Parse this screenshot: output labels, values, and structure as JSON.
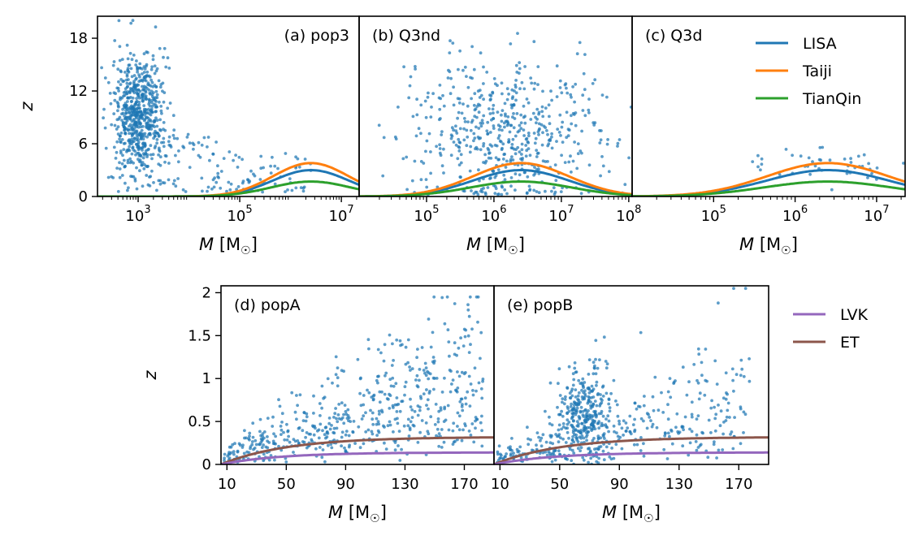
{
  "chart_data": {
    "type": "scatter",
    "colors": {
      "scatter": "#1f77b4",
      "LISA": "#1f77b4",
      "Taiji": "#ff7f0e",
      "TianQin": "#2ca02c",
      "LVK": "#9467bd",
      "ET": "#8c564b"
    },
    "legend_top": {
      "placement": "top-right",
      "entries": [
        "LISA",
        "Taiji",
        "TianQin"
      ]
    },
    "legend_bottom": {
      "placement": "right",
      "entries": [
        "LVK",
        "ET"
      ]
    },
    "panels": [
      {
        "id": "a",
        "title": "(a) pop3",
        "xscale": "log",
        "xlim": [
          2.2,
          7.35
        ],
        "ylim": [
          0,
          20.5
        ],
        "xticks": [
          3,
          5,
          7
        ],
        "xtick_labels": [
          "10",
          "10",
          "10"
        ],
        "xtick_exps": [
          "3",
          "5",
          "7"
        ],
        "yticks": [
          0,
          6,
          12,
          18
        ],
        "ytick_labels": [
          "0",
          "6",
          "12",
          "18"
        ],
        "xlabel_main": "M",
        "xlabel_unit": "[M",
        "xlabel_sun": "☉",
        "xlabel_close": "]",
        "ylabel": "z",
        "scatter_cluster": {
          "cx": 3.0,
          "cy": 9.5,
          "sx": 0.25,
          "sy": 3.5,
          "n": 650
        },
        "scatter_tail": {
          "xrange": [
            3.4,
            6.5
          ],
          "yrange": [
            0.5,
            8
          ],
          "n": 130
        },
        "curves": [
          {
            "name": "LISA",
            "peak_x": 6.4,
            "peak_y": 3.0,
            "width": 1.0
          },
          {
            "name": "Taiji",
            "peak_x": 6.4,
            "peak_y": 3.8,
            "width": 1.0
          },
          {
            "name": "TianQin",
            "peak_x": 6.4,
            "peak_y": 1.7,
            "width": 1.05
          }
        ]
      },
      {
        "id": "b",
        "title": "(b) Q3nd",
        "xscale": "log",
        "xlim": [
          4.0,
          8.05
        ],
        "ylim": [
          0,
          20.5
        ],
        "xticks": [
          5,
          6,
          7,
          8
        ],
        "xtick_labels": [
          "10",
          "10",
          "10",
          "10"
        ],
        "xtick_exps": [
          "5",
          "6",
          "7",
          "8"
        ],
        "yticks": [],
        "xlabel_main": "M",
        "xlabel_unit": "[M",
        "xlabel_sun": "☉",
        "xlabel_close": "]",
        "scatter_cluster": {
          "cx": 6.2,
          "cy": 7.5,
          "sx": 0.75,
          "sy": 4.5,
          "n": 560
        },
        "curves": [
          {
            "name": "LISA",
            "peak_x": 6.4,
            "peak_y": 3.0,
            "width": 0.95
          },
          {
            "name": "Taiji",
            "peak_x": 6.4,
            "peak_y": 3.8,
            "width": 0.95
          },
          {
            "name": "TianQin",
            "peak_x": 6.4,
            "peak_y": 1.7,
            "width": 1.0
          }
        ]
      },
      {
        "id": "c",
        "title": "(c) Q3d",
        "xscale": "log",
        "xlim": [
          4.0,
          7.35
        ],
        "ylim": [
          0,
          20.5
        ],
        "xticks": [
          5,
          6,
          7
        ],
        "xtick_labels": [
          "10",
          "10",
          "10"
        ],
        "xtick_exps": [
          "5",
          "6",
          "7"
        ],
        "yticks": [],
        "xlabel_main": "M",
        "xlabel_unit": "[M",
        "xlabel_sun": "☉",
        "xlabel_close": "]",
        "scatter_cluster": {
          "cx": 6.3,
          "cy": 4.0,
          "sx": 0.5,
          "sy": 1.3,
          "n": 45
        },
        "curves": [
          {
            "name": "LISA",
            "peak_x": 6.4,
            "peak_y": 3.0,
            "width": 1.0
          },
          {
            "name": "Taiji",
            "peak_x": 6.4,
            "peak_y": 3.8,
            "width": 1.0
          },
          {
            "name": "TianQin",
            "peak_x": 6.4,
            "peak_y": 1.7,
            "width": 1.05
          }
        ]
      },
      {
        "id": "d",
        "title": "(d) popA",
        "xscale": "linear",
        "xlim": [
          6,
          190
        ],
        "ylim": [
          0,
          2.08
        ],
        "xticks": [
          10,
          50,
          90,
          130,
          170
        ],
        "xtick_labels": [
          "10",
          "50",
          "90",
          "130",
          "170"
        ],
        "yticks": [
          0,
          0.5,
          1,
          1.5,
          2
        ],
        "ytick_labels": [
          "0",
          "0.5",
          "1",
          "1.5",
          "2"
        ],
        "xlabel_main": "M",
        "xlabel_unit": "[M",
        "xlabel_sun": "☉",
        "xlabel_close": "]",
        "ylabel": "z",
        "scatter_model": "popA",
        "scatter_n": 560,
        "curves": [
          {
            "name": "ET",
            "asymptote": 0.32,
            "scale": 45
          },
          {
            "name": "LVK",
            "asymptote": 0.14,
            "scale": 40
          }
        ]
      },
      {
        "id": "e",
        "title": "(e) popB",
        "xscale": "linear",
        "xlim": [
          6,
          190
        ],
        "ylim": [
          0,
          2.08
        ],
        "xticks": [
          10,
          50,
          90,
          130,
          170
        ],
        "xtick_labels": [
          "10",
          "50",
          "90",
          "130",
          "170"
        ],
        "yticks": [],
        "xlabel_main": "M",
        "xlabel_unit": "[M",
        "xlabel_sun": "☉",
        "xlabel_close": "]",
        "scatter_model": "popB",
        "scatter_n": 640,
        "curves": [
          {
            "name": "ET",
            "asymptote": 0.32,
            "scale": 45
          },
          {
            "name": "LVK",
            "asymptote": 0.14,
            "scale": 40
          }
        ]
      }
    ]
  }
}
